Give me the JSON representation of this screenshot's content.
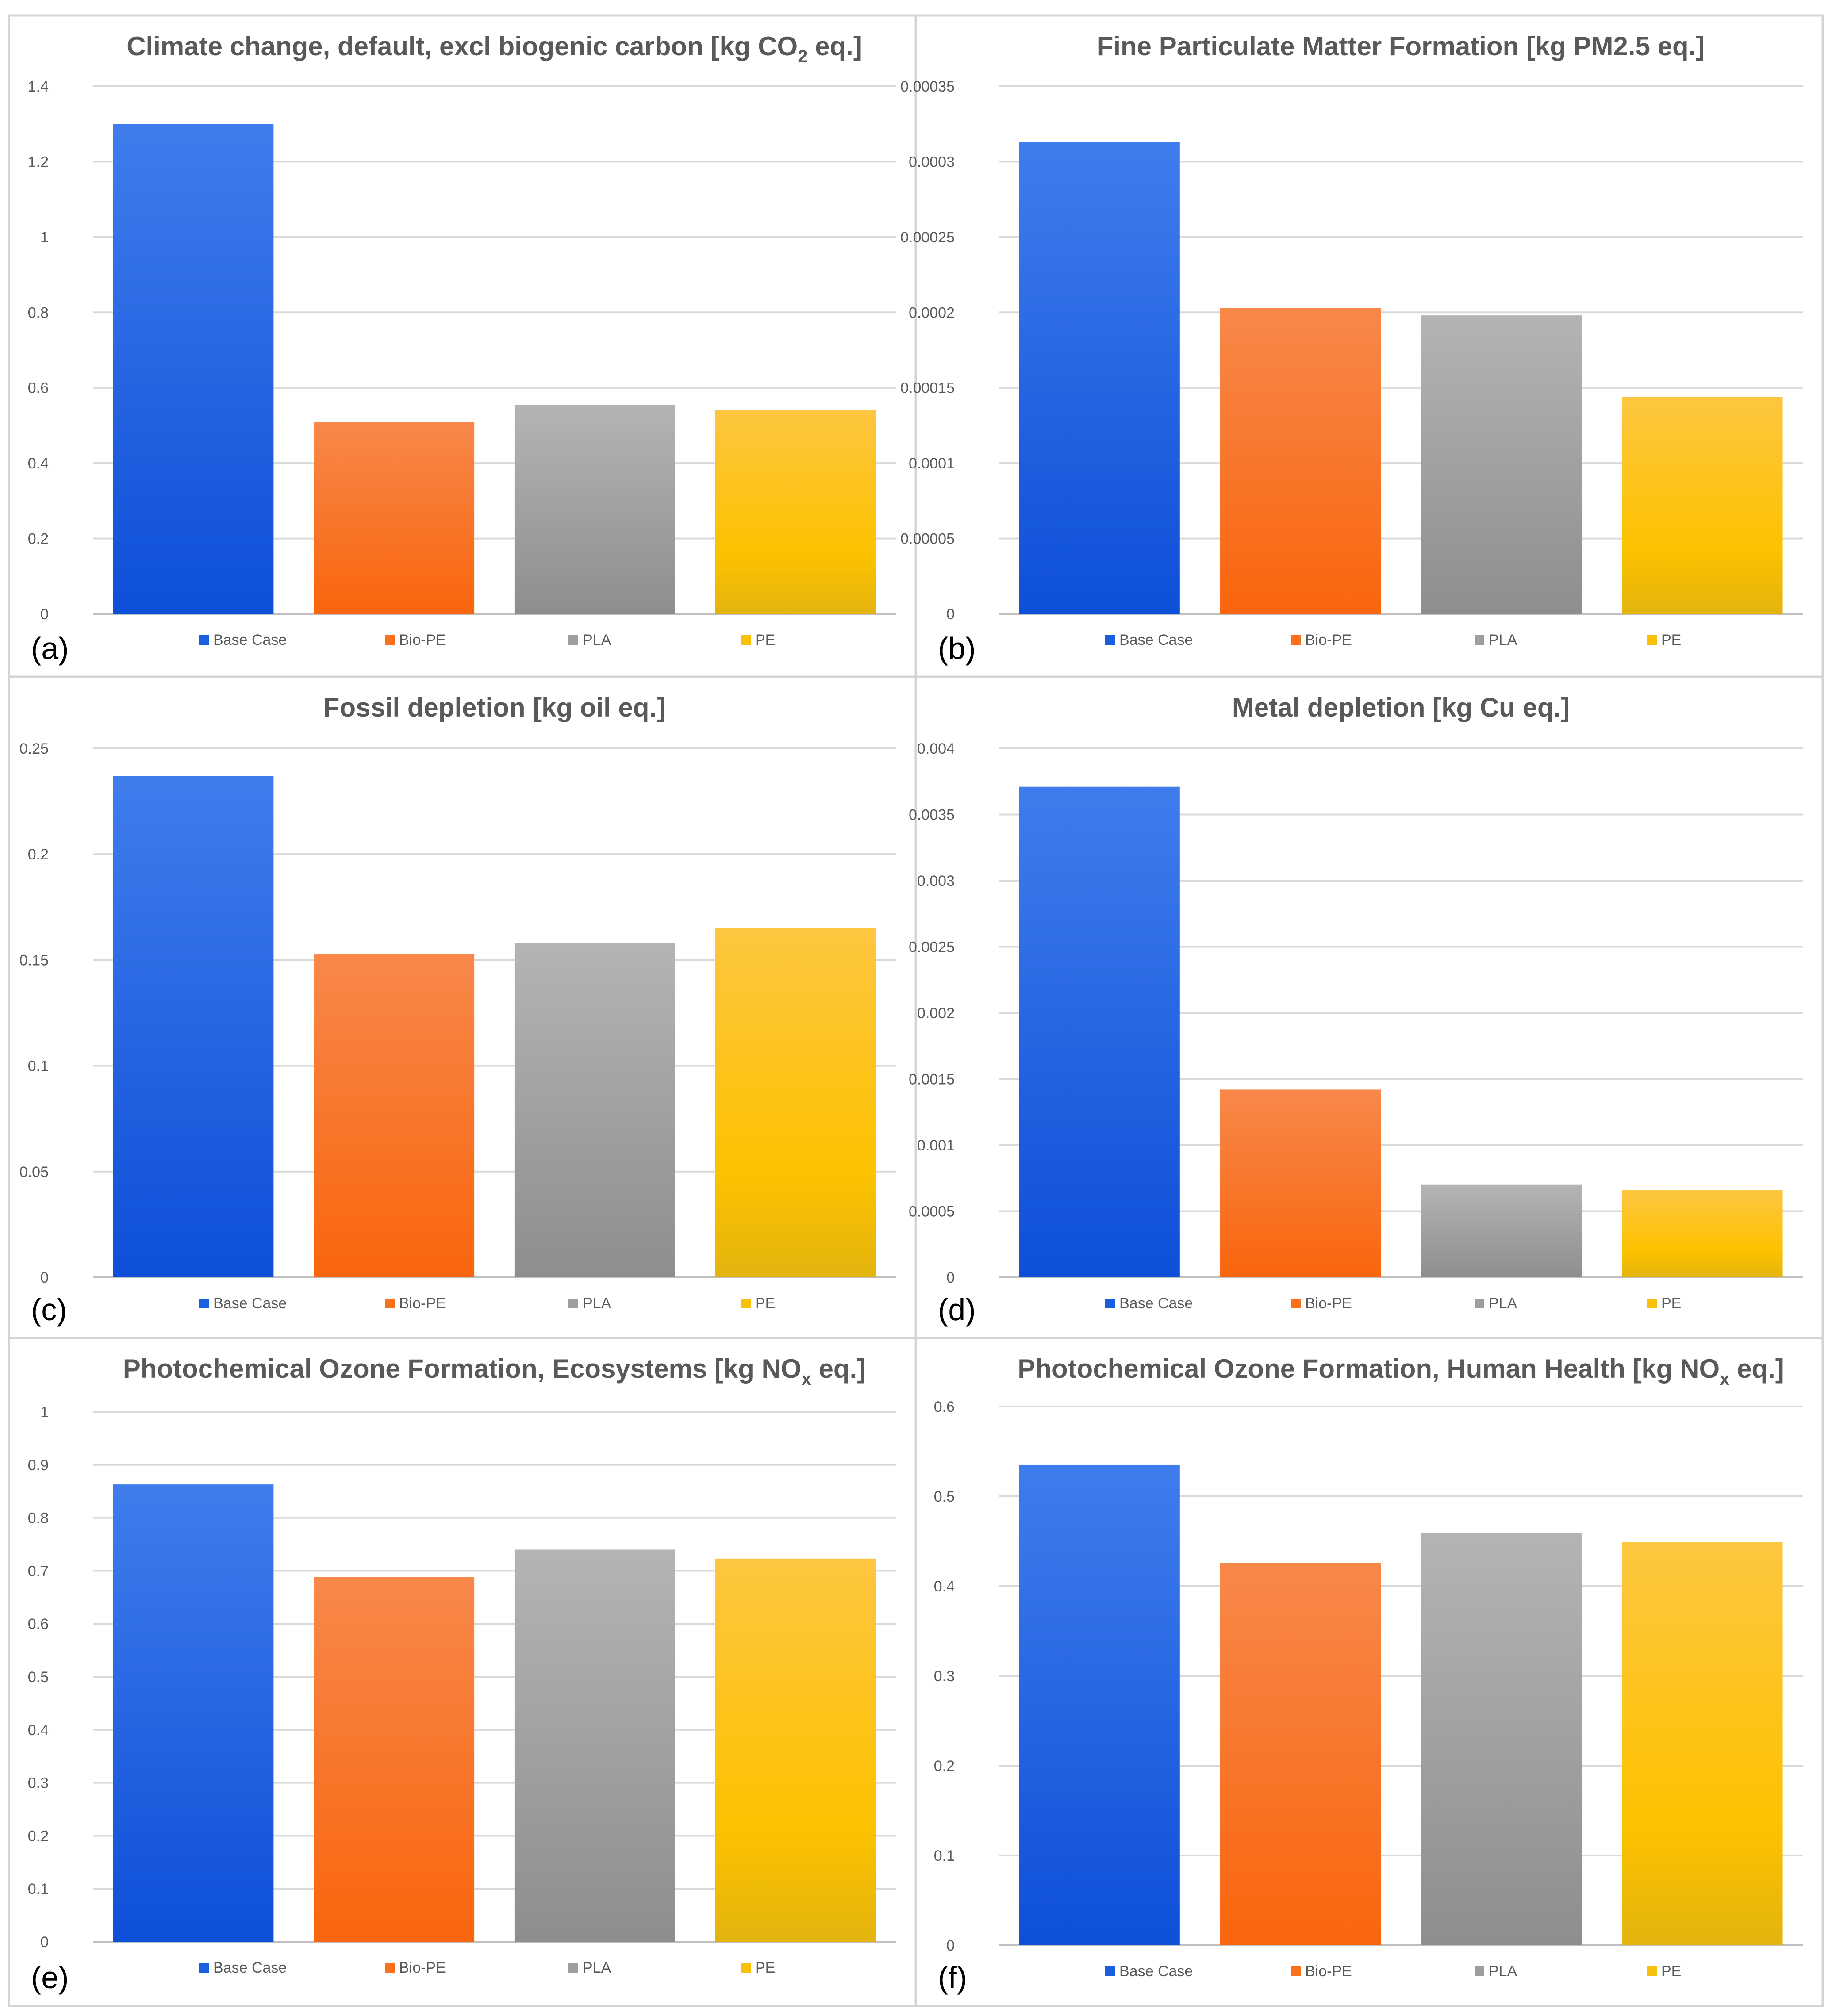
{
  "legend": {
    "items": [
      {
        "label": "Base Case",
        "color": "#1a5fe0"
      },
      {
        "label": "Bio-PE",
        "color": "#f8701a"
      },
      {
        "label": "PLA",
        "color": "#9e9e9e"
      },
      {
        "label": "PE",
        "color": "#f7c00d"
      }
    ]
  },
  "chart_data": [
    {
      "type": "bar",
      "panel_label": "(a)",
      "title": "Climate change, default, excl biogenic carbon [kg CO",
      "title_sub": "2",
      "title_suffix": " eq.]",
      "categories": [
        "Base Case",
        "Bio-PE",
        "PLA",
        "PE"
      ],
      "values": [
        1.3,
        0.51,
        0.555,
        0.54
      ],
      "ylim": [
        0,
        1.4
      ],
      "yticks": [
        "0",
        "0.2",
        "0.4",
        "0.6",
        "0.8",
        "1",
        "1.2",
        "1.4"
      ],
      "xlabel": "",
      "ylabel": "",
      "grid": true,
      "legend": "bottom"
    },
    {
      "type": "bar",
      "panel_label": "(b)",
      "title": "Fine Particulate Matter Formation [kg PM2.5 eq.]",
      "title_sub": "",
      "title_suffix": "",
      "categories": [
        "Base Case",
        "Bio-PE",
        "PLA",
        "PE"
      ],
      "values": [
        0.000313,
        0.000203,
        0.000198,
        0.000144
      ],
      "ylim": [
        0,
        0.00035
      ],
      "yticks": [
        "0",
        "0.00005",
        "0.0001",
        "0.00015",
        "0.0002",
        "0.00025",
        "0.0003",
        "0.00035"
      ],
      "xlabel": "",
      "ylabel": "",
      "grid": true,
      "legend": "bottom"
    },
    {
      "type": "bar",
      "panel_label": "(c)",
      "title": "Fossil depletion [kg oil eq.]",
      "title_sub": "",
      "title_suffix": "",
      "categories": [
        "Base Case",
        "Bio-PE",
        "PLA",
        "PE"
      ],
      "values": [
        0.237,
        0.153,
        0.158,
        0.165
      ],
      "ylim": [
        0,
        0.25
      ],
      "yticks": [
        "0",
        "0.05",
        "0.1",
        "0.15",
        "0.2",
        "0.25"
      ],
      "xlabel": "",
      "ylabel": "",
      "grid": true,
      "legend": "bottom"
    },
    {
      "type": "bar",
      "panel_label": "(d)",
      "title": "Metal depletion [kg Cu eq.]",
      "title_sub": "",
      "title_suffix": "",
      "categories": [
        "Base Case",
        "Bio-PE",
        "PLA",
        "PE"
      ],
      "values": [
        0.00371,
        0.00142,
        0.0007,
        0.00066
      ],
      "ylim": [
        0,
        0.004
      ],
      "yticks": [
        "0",
        "0.0005",
        "0.001",
        "0.0015",
        "0.002",
        "0.0025",
        "0.003",
        "0.0035",
        "0.004"
      ],
      "xlabel": "",
      "ylabel": "",
      "grid": true,
      "legend": "bottom"
    },
    {
      "type": "bar",
      "panel_label": "(e)",
      "title": "Photochemical Ozone Formation, Ecosystems [kg NO",
      "title_sub": "x",
      "title_suffix": " eq.]",
      "categories": [
        "Base Case",
        "Bio-PE",
        "PLA",
        "PE"
      ],
      "values": [
        0.863,
        0.688,
        0.74,
        0.723
      ],
      "ylim": [
        0,
        1
      ],
      "yticks": [
        "0",
        "0.1",
        "0.2",
        "0.3",
        "0.4",
        "0.5",
        "0.6",
        "0.7",
        "0.8",
        "0.9",
        "1"
      ],
      "xlabel": "",
      "ylabel": "",
      "grid": true,
      "legend": "bottom"
    },
    {
      "type": "bar",
      "panel_label": "(f)",
      "title": "Photochemical Ozone Formation, Human Health [kg NO",
      "title_sub": "x",
      "title_suffix": " eq.]",
      "categories": [
        "Base Case",
        "Bio-PE",
        "PLA",
        "PE"
      ],
      "values": [
        0.535,
        0.426,
        0.459,
        0.449
      ],
      "ylim": [
        0,
        0.6
      ],
      "yticks": [
        "0",
        "0.1",
        "0.2",
        "0.3",
        "0.4",
        "0.5",
        "0.6"
      ],
      "xlabel": "",
      "ylabel": "",
      "grid": true,
      "legend": "bottom"
    }
  ]
}
